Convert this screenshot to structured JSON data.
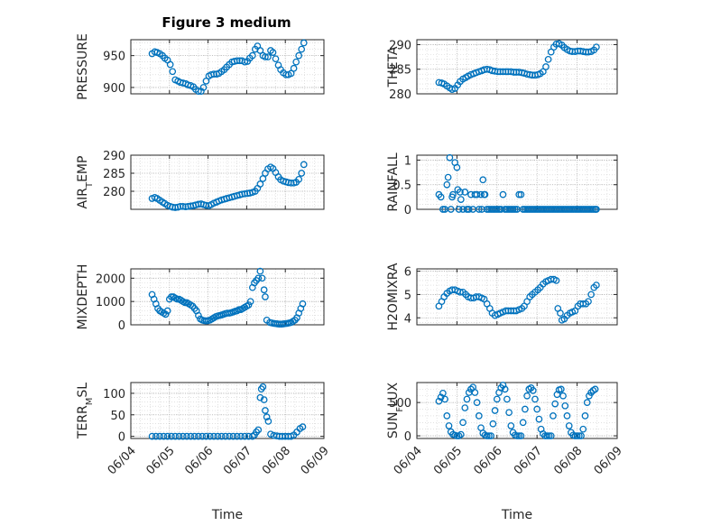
{
  "figure": {
    "title": "Figure 3 medium",
    "marker_color": "#0072BD",
    "grid": "on (major and minor, dotted)",
    "marker": "open circle"
  },
  "chart_data": [
    {
      "id": "pressure",
      "type": "scatter",
      "title": "Figure 3 medium",
      "ylabel": "PRESSURE",
      "xlabel": "",
      "xlim": [
        "06/04",
        "06/09"
      ],
      "xticks": [
        "06/04",
        "06/05",
        "06/06",
        "06/07",
        "06/08",
        "06/09"
      ],
      "ylim": [
        890,
        975
      ],
      "yticks": [
        900,
        950
      ],
      "x": [
        4.55,
        4.62,
        4.68,
        4.75,
        4.82,
        4.88,
        4.95,
        5.02,
        5.08,
        5.15,
        5.22,
        5.28,
        5.35,
        5.42,
        5.48,
        5.55,
        5.62,
        5.68,
        5.75,
        5.82,
        5.88,
        5.95,
        6.02,
        6.08,
        6.15,
        6.22,
        6.28,
        6.35,
        6.42,
        6.48,
        6.55,
        6.62,
        6.68,
        6.75,
        6.82,
        6.88,
        6.95,
        7.02,
        7.08,
        7.15,
        7.22,
        7.28,
        7.35,
        7.42,
        7.48,
        7.55,
        7.62,
        7.68,
        7.75,
        7.82,
        7.88,
        7.95,
        8.02,
        8.08,
        8.15,
        8.22,
        8.28,
        8.35,
        8.42,
        8.48
      ],
      "y": [
        953,
        956,
        955,
        953,
        950,
        946,
        943,
        936,
        925,
        912,
        910,
        908,
        907,
        906,
        904,
        903,
        901,
        897,
        894,
        894,
        900,
        910,
        918,
        920,
        921,
        921,
        922,
        925,
        928,
        932,
        936,
        940,
        941,
        942,
        942,
        942,
        940,
        941,
        946,
        950,
        960,
        965,
        958,
        950,
        948,
        948,
        958,
        955,
        945,
        935,
        928,
        923,
        920,
        920,
        922,
        930,
        940,
        950,
        960,
        970
      ],
      "series": [
        {
          "name": "",
          "color": "#0072BD"
        }
      ]
    },
    {
      "id": "theta",
      "type": "scatter",
      "ylabel": "THETA",
      "xlabel": "",
      "xlim": [
        "06/04",
        "06/09"
      ],
      "xticks": [
        "06/04",
        "06/05",
        "06/06",
        "06/07",
        "06/08",
        "06/09"
      ],
      "ylim": [
        280,
        291
      ],
      "yticks": [
        280,
        285,
        290
      ],
      "x": [
        4.55,
        4.62,
        4.68,
        4.75,
        4.82,
        4.88,
        4.95,
        5.02,
        5.08,
        5.15,
        5.22,
        5.28,
        5.35,
        5.42,
        5.48,
        5.55,
        5.62,
        5.68,
        5.75,
        5.82,
        5.88,
        5.95,
        6.02,
        6.08,
        6.15,
        6.22,
        6.28,
        6.35,
        6.42,
        6.48,
        6.55,
        6.62,
        6.68,
        6.75,
        6.82,
        6.88,
        6.95,
        7.02,
        7.08,
        7.15,
        7.22,
        7.28,
        7.35,
        7.42,
        7.48,
        7.55,
        7.62,
        7.68,
        7.75,
        7.82,
        7.88,
        7.95,
        8.02,
        8.08,
        8.15,
        8.22,
        8.28,
        8.35,
        8.42,
        8.48
      ],
      "y": [
        282.3,
        282.2,
        282.0,
        281.6,
        281.2,
        280.9,
        281.1,
        281.8,
        282.5,
        283.0,
        283.3,
        283.6,
        283.9,
        284.1,
        284.3,
        284.5,
        284.7,
        284.9,
        285.0,
        284.9,
        284.7,
        284.6,
        284.5,
        284.5,
        284.5,
        284.5,
        284.5,
        284.5,
        284.4,
        284.4,
        284.4,
        284.3,
        284.2,
        284.0,
        283.9,
        283.8,
        283.8,
        283.9,
        284.1,
        284.5,
        285.5,
        287.0,
        288.5,
        289.5,
        290.1,
        290.2,
        289.9,
        289.4,
        289.0,
        288.7,
        288.6,
        288.6,
        288.7,
        288.7,
        288.6,
        288.5,
        288.5,
        288.6,
        288.9,
        289.5
      ],
      "series": [
        {
          "name": "",
          "color": "#0072BD"
        }
      ]
    },
    {
      "id": "air_temp",
      "type": "scatter",
      "ylabel": "AIR_TEMP",
      "xlabel": "",
      "xlim": [
        "06/04",
        "06/09"
      ],
      "xticks": [
        "06/04",
        "06/05",
        "06/06",
        "06/07",
        "06/08",
        "06/09"
      ],
      "ylim": [
        275,
        290
      ],
      "yticks": [
        280,
        285,
        290
      ],
      "x": [
        4.55,
        4.62,
        4.68,
        4.75,
        4.82,
        4.88,
        4.95,
        5.02,
        5.08,
        5.15,
        5.22,
        5.28,
        5.35,
        5.42,
        5.48,
        5.55,
        5.62,
        5.68,
        5.75,
        5.82,
        5.88,
        5.95,
        6.02,
        6.08,
        6.15,
        6.22,
        6.28,
        6.35,
        6.42,
        6.48,
        6.55,
        6.62,
        6.68,
        6.75,
        6.82,
        6.88,
        6.95,
        7.02,
        7.08,
        7.15,
        7.22,
        7.28,
        7.35,
        7.42,
        7.48,
        7.55,
        7.62,
        7.68,
        7.75,
        7.82,
        7.88,
        7.95,
        8.02,
        8.08,
        8.15,
        8.22,
        8.28,
        8.35,
        8.42,
        8.48
      ],
      "y": [
        278.0,
        278.3,
        278.0,
        277.5,
        277.0,
        276.6,
        276.1,
        275.8,
        275.6,
        275.5,
        275.6,
        275.8,
        275.8,
        275.7,
        275.8,
        275.9,
        276.0,
        276.2,
        276.4,
        276.5,
        276.3,
        276.1,
        276.0,
        276.3,
        276.7,
        277.0,
        277.3,
        277.6,
        277.8,
        278.0,
        278.2,
        278.4,
        278.6,
        278.8,
        279.0,
        279.2,
        279.3,
        279.4,
        279.5,
        279.7,
        280.0,
        280.8,
        282.0,
        283.5,
        285.0,
        286.2,
        286.7,
        286.3,
        285.2,
        284.0,
        283.2,
        282.8,
        282.6,
        282.4,
        282.3,
        282.3,
        282.5,
        283.3,
        285.0,
        287.4
      ],
      "series": [
        {
          "name": "",
          "color": "#0072BD"
        }
      ]
    },
    {
      "id": "rainfall",
      "type": "scatter",
      "ylabel": "RAINFALL",
      "xlabel": "",
      "xlim": [
        "06/04",
        "06/09"
      ],
      "xticks": [
        "06/04",
        "06/05",
        "06/06",
        "06/07",
        "06/08",
        "06/09"
      ],
      "ylim": [
        0,
        1.1
      ],
      "yticks": [
        0,
        0.5,
        1
      ],
      "x": [
        4.55,
        4.6,
        4.65,
        4.7,
        4.75,
        4.78,
        4.82,
        4.85,
        4.88,
        4.9,
        4.95,
        5.0,
        5.02,
        5.05,
        5.08,
        5.1,
        5.15,
        5.2,
        5.25,
        5.3,
        5.35,
        5.4,
        5.45,
        5.5,
        5.55,
        5.6,
        5.62,
        5.65,
        5.68,
        5.7,
        5.75,
        5.8,
        5.85,
        5.9,
        5.95,
        6.0,
        6.05,
        6.1,
        6.15,
        6.2,
        6.25,
        6.3,
        6.35,
        6.4,
        6.45,
        6.5,
        6.55,
        6.6,
        6.65,
        6.7,
        6.75,
        6.8,
        6.85,
        6.9,
        6.95,
        7.0,
        7.05,
        7.1,
        7.15,
        7.2,
        7.25,
        7.3,
        7.35,
        7.4,
        7.45,
        7.5,
        7.55,
        7.6,
        7.65,
        7.7,
        7.75,
        7.8,
        7.85,
        7.9,
        7.95,
        8.0,
        8.05,
        8.1,
        8.15,
        8.2,
        8.25,
        8.3,
        8.35,
        8.4,
        8.45,
        8.48
      ],
      "y": [
        0.3,
        0.25,
        0.0,
        0.0,
        0.5,
        0.65,
        1.05,
        0.0,
        0.25,
        0.3,
        0.95,
        0.85,
        0.4,
        0.0,
        0.35,
        0.2,
        0.0,
        0.35,
        0.0,
        0.0,
        0.3,
        0.0,
        0.3,
        0.3,
        0.0,
        0.3,
        0.0,
        0.6,
        0.3,
        0.3,
        0.0,
        0.0,
        0.0,
        0.0,
        0.0,
        0.0,
        0.0,
        0.0,
        0.3,
        0.0,
        0.0,
        0.0,
        0.0,
        0.0,
        0.0,
        0.0,
        0.3,
        0.3,
        0.0,
        0.0,
        0.0,
        0.0,
        0.0,
        0.0,
        0.0,
        0.0,
        0.0,
        0.0,
        0.0,
        0.0,
        0.0,
        0.0,
        0.0,
        0.0,
        0.0,
        0.0,
        0.0,
        0.0,
        0.0,
        0.0,
        0.0,
        0.0,
        0.0,
        0.0,
        0.0,
        0.0,
        0.0,
        0.0,
        0.0,
        0.0,
        0.0,
        0.0,
        0.0,
        0.0,
        0.0,
        0.0
      ],
      "series": [
        {
          "name": "",
          "color": "#0072BD"
        }
      ]
    },
    {
      "id": "mixdepth",
      "type": "scatter",
      "ylabel": "MIXDEPTH",
      "xlabel": "",
      "xlim": [
        "06/04",
        "06/09"
      ],
      "xticks": [
        "06/04",
        "06/05",
        "06/06",
        "06/07",
        "06/08",
        "06/09"
      ],
      "ylim": [
        0,
        2400
      ],
      "yticks": [
        0,
        1000,
        2000
      ],
      "x": [
        4.55,
        4.6,
        4.65,
        4.7,
        4.75,
        4.8,
        4.85,
        4.9,
        4.95,
        5.0,
        5.05,
        5.1,
        5.15,
        5.2,
        5.25,
        5.3,
        5.35,
        5.4,
        5.45,
        5.5,
        5.55,
        5.6,
        5.65,
        5.7,
        5.75,
        5.8,
        5.85,
        5.9,
        5.95,
        6.0,
        6.05,
        6.1,
        6.15,
        6.2,
        6.25,
        6.3,
        6.35,
        6.4,
        6.45,
        6.5,
        6.55,
        6.6,
        6.65,
        6.7,
        6.75,
        6.8,
        6.85,
        6.9,
        6.95,
        7.0,
        7.05,
        7.1,
        7.15,
        7.2,
        7.25,
        7.3,
        7.35,
        7.4,
        7.45,
        7.48,
        7.52,
        7.6,
        7.65,
        7.7,
        7.75,
        7.8,
        7.85,
        7.9,
        7.95,
        8.0,
        8.05,
        8.1,
        8.15,
        8.2,
        8.25,
        8.3,
        8.35,
        8.4,
        8.45
      ],
      "y": [
        1300,
        1100,
        900,
        700,
        600,
        550,
        500,
        450,
        600,
        1100,
        1200,
        1200,
        1150,
        1100,
        1100,
        1050,
        1000,
        950,
        950,
        900,
        850,
        800,
        700,
        600,
        400,
        250,
        200,
        180,
        170,
        180,
        200,
        250,
        300,
        350,
        380,
        400,
        420,
        450,
        480,
        500,
        500,
        520,
        550,
        580,
        600,
        650,
        650,
        700,
        750,
        800,
        850,
        1000,
        1600,
        1800,
        1900,
        2000,
        2300,
        2000,
        1500,
        1200,
        200,
        100,
        80,
        60,
        50,
        40,
        30,
        30,
        40,
        50,
        60,
        80,
        100,
        150,
        200,
        300,
        500,
        700,
        900
      ],
      "series": [
        {
          "name": "",
          "color": "#0072BD"
        }
      ]
    },
    {
      "id": "h2omixra",
      "type": "scatter",
      "ylabel": "H2OMIXRA",
      "xlabel": "",
      "xlim": [
        "06/04",
        "06/09"
      ],
      "xticks": [
        "06/04",
        "06/05",
        "06/06",
        "06/07",
        "06/08",
        "06/09"
      ],
      "ylim": [
        3.7,
        6.1
      ],
      "yticks": [
        4,
        5,
        6
      ],
      "x": [
        4.55,
        4.62,
        4.68,
        4.75,
        4.82,
        4.88,
        4.95,
        5.02,
        5.08,
        5.15,
        5.22,
        5.28,
        5.35,
        5.42,
        5.48,
        5.55,
        5.62,
        5.68,
        5.75,
        5.82,
        5.88,
        5.95,
        6.02,
        6.08,
        6.15,
        6.22,
        6.28,
        6.35,
        6.42,
        6.48,
        6.55,
        6.62,
        6.68,
        6.75,
        6.82,
        6.88,
        6.95,
        7.02,
        7.08,
        7.15,
        7.22,
        7.28,
        7.35,
        7.42,
        7.48,
        7.52,
        7.58,
        7.62,
        7.68,
        7.75,
        7.82,
        7.88,
        7.95,
        8.02,
        8.08,
        8.15,
        8.22,
        8.28,
        8.35,
        8.42,
        8.48
      ],
      "y": [
        4.5,
        4.7,
        4.9,
        5.05,
        5.15,
        5.2,
        5.2,
        5.15,
        5.1,
        5.1,
        5.0,
        4.9,
        4.85,
        4.85,
        4.9,
        4.9,
        4.85,
        4.8,
        4.6,
        4.4,
        4.2,
        4.1,
        4.15,
        4.2,
        4.25,
        4.3,
        4.3,
        4.3,
        4.3,
        4.3,
        4.35,
        4.4,
        4.5,
        4.7,
        4.9,
        5.0,
        5.1,
        5.2,
        5.3,
        5.45,
        5.55,
        5.6,
        5.65,
        5.65,
        5.6,
        4.4,
        4.2,
        3.9,
        3.95,
        4.1,
        4.2,
        4.25,
        4.3,
        4.5,
        4.6,
        4.6,
        4.6,
        4.7,
        5.0,
        5.3,
        5.4
      ],
      "series": [
        {
          "name": "",
          "color": "#0072BD"
        }
      ]
    },
    {
      "id": "terr_msl",
      "type": "scatter",
      "ylabel": "TERR_MSL",
      "xlabel": "Time",
      "xlim": [
        "06/04",
        "06/09"
      ],
      "xticks": [
        "06/04",
        "06/05",
        "06/06",
        "06/07",
        "06/08",
        "06/09"
      ],
      "ylim": [
        -5,
        125
      ],
      "yticks": [
        0,
        50,
        100
      ],
      "x": [
        4.55,
        4.65,
        4.75,
        4.85,
        4.95,
        5.05,
        5.15,
        5.25,
        5.35,
        5.45,
        5.55,
        5.65,
        5.75,
        5.85,
        5.95,
        6.05,
        6.15,
        6.25,
        6.35,
        6.45,
        6.55,
        6.65,
        6.75,
        6.85,
        6.95,
        7.05,
        7.15,
        7.2,
        7.25,
        7.3,
        7.35,
        7.38,
        7.42,
        7.45,
        7.48,
        7.52,
        7.56,
        7.62,
        7.7,
        7.78,
        7.85,
        7.92,
        8.0,
        8.08,
        8.15,
        8.22,
        8.3,
        8.38,
        8.45
      ],
      "y": [
        0,
        0,
        0,
        0,
        0,
        0,
        0,
        0,
        0,
        0,
        0,
        0,
        0,
        0,
        0,
        0,
        0,
        0,
        0,
        0,
        0,
        0,
        0,
        0,
        0,
        0,
        0,
        3,
        10,
        15,
        90,
        110,
        115,
        85,
        60,
        45,
        35,
        5,
        2,
        1,
        0,
        0,
        0,
        0,
        0,
        3,
        10,
        18,
        22
      ],
      "series": [
        {
          "name": "",
          "color": "#0072BD"
        }
      ]
    },
    {
      "id": "sun_flux",
      "type": "scatter",
      "ylabel": "SUN_FLUX",
      "xlabel": "Time",
      "xlim": [
        "06/04",
        "06/09"
      ],
      "xticks": [
        "06/04",
        "06/05",
        "06/06",
        "06/07",
        "06/08",
        "06/09"
      ],
      "ylim": [
        -40,
        800
      ],
      "yticks": [
        0,
        500
      ],
      "x": [
        4.55,
        4.6,
        4.65,
        4.7,
        4.75,
        4.8,
        4.85,
        4.9,
        4.95,
        5.0,
        5.05,
        5.1,
        5.15,
        5.2,
        5.25,
        5.3,
        5.35,
        5.4,
        5.45,
        5.5,
        5.55,
        5.6,
        5.65,
        5.7,
        5.75,
        5.8,
        5.85,
        5.9,
        5.95,
        6.0,
        6.05,
        6.1,
        6.15,
        6.2,
        6.25,
        6.3,
        6.35,
        6.4,
        6.45,
        6.5,
        6.55,
        6.6,
        6.65,
        6.7,
        6.75,
        6.8,
        6.85,
        6.9,
        6.95,
        7.0,
        7.05,
        7.1,
        7.15,
        7.2,
        7.25,
        7.3,
        7.35,
        7.4,
        7.45,
        7.5,
        7.55,
        7.6,
        7.65,
        7.7,
        7.75,
        7.8,
        7.85,
        7.9,
        7.95,
        8.0,
        8.05,
        8.1,
        8.15,
        8.2,
        8.25,
        8.3,
        8.35,
        8.4,
        8.45
      ],
      "y": [
        520,
        580,
        640,
        550,
        300,
        150,
        60,
        20,
        10,
        0,
        0,
        20,
        200,
        420,
        550,
        650,
        700,
        730,
        650,
        500,
        300,
        120,
        40,
        10,
        0,
        0,
        0,
        180,
        380,
        550,
        650,
        720,
        760,
        700,
        550,
        350,
        150,
        50,
        10,
        0,
        0,
        0,
        200,
        400,
        600,
        700,
        720,
        680,
        550,
        400,
        250,
        100,
        30,
        0,
        0,
        0,
        0,
        300,
        480,
        620,
        690,
        700,
        600,
        450,
        300,
        150,
        50,
        10,
        0,
        0,
        0,
        0,
        100,
        300,
        500,
        600,
        650,
        680,
        700
      ],
      "series": [
        {
          "name": "",
          "color": "#0072BD"
        }
      ]
    }
  ]
}
